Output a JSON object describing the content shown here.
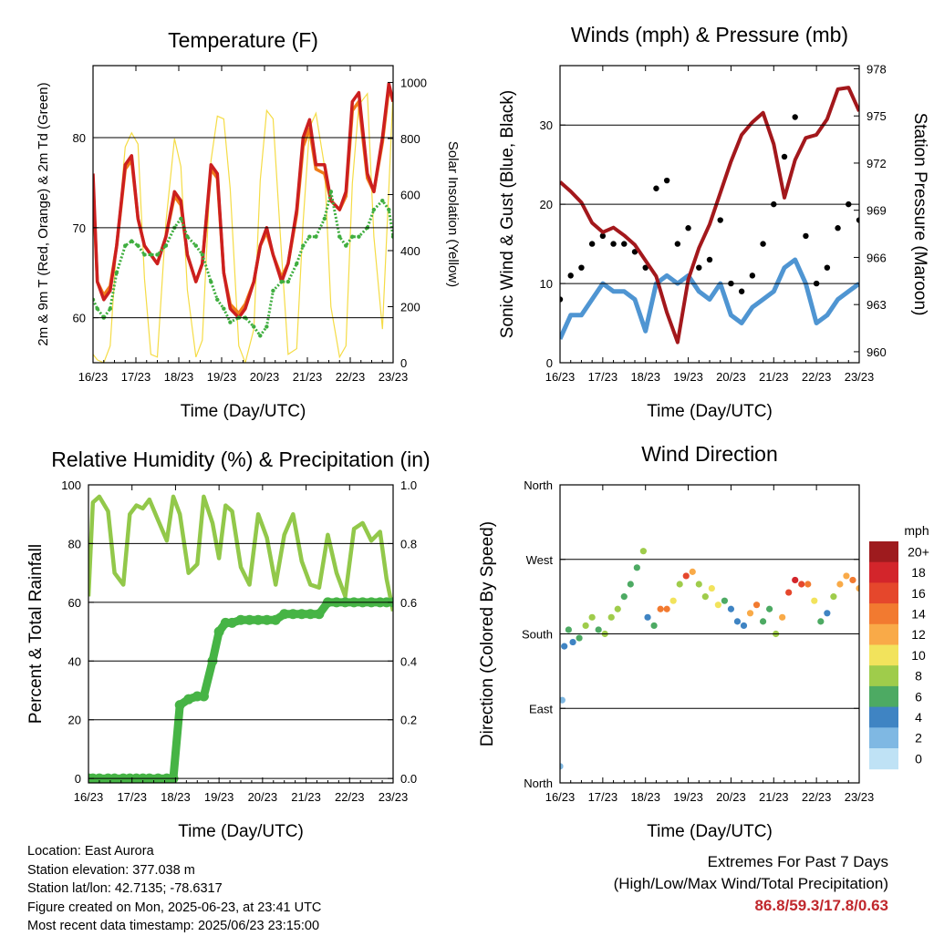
{
  "colors": {
    "temp_2m": "#cc1f1f",
    "temp_9m": "#f07d1a",
    "dewpoint": "#3fae3f",
    "solar": "#f5dc46",
    "wind": "#4f95d2",
    "gust": "#000000",
    "pressure": "#a3181c",
    "rh": "#92c84a",
    "precip": "#46b445",
    "extremes": "#c0282d"
  },
  "chart_data": [
    {
      "id": "temperature",
      "type": "line",
      "title": "Temperature (F)",
      "xlabel": "Time (Day/UTC)",
      "ylabel": "2m & 9m T (Red, Orange) & 2m Td (Green)",
      "y2label": "Solar Insolation (Yellow)",
      "x_ticks": [
        "16/23",
        "17/23",
        "18/23",
        "19/23",
        "20/23",
        "21/23",
        "22/23",
        "23/23"
      ],
      "xlim": [
        0,
        7
      ],
      "ylim": [
        55,
        88
      ],
      "y_ticks": [
        60,
        70,
        80
      ],
      "y2lim": [
        0,
        1060
      ],
      "y2_ticks": [
        0,
        200,
        400,
        600,
        800,
        1000
      ],
      "grid": true,
      "x": [
        0,
        0.1,
        0.25,
        0.4,
        0.55,
        0.75,
        0.9,
        1.05,
        1.2,
        1.35,
        1.5,
        1.7,
        1.9,
        2.05,
        2.2,
        2.4,
        2.55,
        2.75,
        2.9,
        3.05,
        3.2,
        3.4,
        3.55,
        3.75,
        3.9,
        4.05,
        4.2,
        4.4,
        4.55,
        4.75,
        4.9,
        5.05,
        5.2,
        5.4,
        5.55,
        5.75,
        5.9,
        6.05,
        6.2,
        6.4,
        6.55,
        6.75,
        6.9,
        7.0
      ],
      "series": [
        {
          "name": "2m T",
          "values": [
            76,
            64,
            62,
            63,
            68,
            77,
            78,
            71,
            68,
            67,
            66,
            69,
            74,
            73,
            67,
            64,
            66,
            77,
            76,
            65,
            61,
            60,
            61,
            64,
            68,
            70,
            67,
            64,
            66,
            72,
            80,
            82,
            77,
            77,
            73,
            72,
            74,
            84,
            85,
            76,
            74,
            80,
            86,
            84
          ]
        },
        {
          "name": "9m T",
          "values": [
            75,
            64,
            62.5,
            63.5,
            68,
            76.5,
            77.5,
            71,
            68,
            67,
            66,
            69,
            73.5,
            72.5,
            67,
            64,
            66,
            76.5,
            75.5,
            65,
            61.5,
            60.5,
            61.5,
            64,
            68,
            69.5,
            67,
            64.5,
            66,
            71.5,
            79,
            81,
            76.5,
            76,
            73,
            72,
            73.5,
            83,
            84,
            75.5,
            74,
            79.5,
            85.5,
            84
          ]
        },
        {
          "name": "2m Td",
          "values": [
            62,
            61,
            60,
            61,
            65,
            68,
            68.5,
            68,
            67,
            67,
            67,
            68,
            70,
            71,
            69,
            68,
            67,
            64,
            62,
            61,
            59.5,
            60,
            60,
            59,
            58,
            59,
            63,
            64,
            64,
            66,
            68,
            69,
            69,
            71,
            74,
            69,
            68,
            69,
            69,
            70,
            72,
            73,
            72,
            69
          ]
        },
        {
          "name": "Solar",
          "axis": "y2",
          "values": [
            30,
            10,
            0,
            60,
            420,
            770,
            820,
            780,
            300,
            30,
            20,
            500,
            800,
            700,
            260,
            20,
            80,
            720,
            880,
            870,
            620,
            60,
            0,
            120,
            650,
            900,
            870,
            380,
            30,
            50,
            500,
            840,
            890,
            700,
            200,
            20,
            60,
            640,
            920,
            960,
            450,
            120,
            620,
            970
          ]
        }
      ]
    },
    {
      "id": "winds-pressure",
      "type": "scatter",
      "title": "Winds (mph) & Pressure (mb)",
      "xlabel": "Time (Day/UTC)",
      "ylabel": "Sonic Wind & Gust (Blue, Black)",
      "y2label": "Station Pressure (Maroon)",
      "x_ticks": [
        "16/23",
        "17/23",
        "18/23",
        "19/23",
        "20/23",
        "21/23",
        "22/23",
        "23/23"
      ],
      "xlim": [
        0,
        7
      ],
      "ylim": [
        0,
        37.5
      ],
      "y_ticks": [
        0,
        10,
        20,
        30
      ],
      "y2lim": [
        959.3,
        978.2
      ],
      "y2_ticks": [
        960,
        963,
        966,
        969,
        972,
        975,
        978
      ],
      "grid": true,
      "x": [
        0,
        0.25,
        0.5,
        0.75,
        1.0,
        1.25,
        1.5,
        1.75,
        2.0,
        2.25,
        2.5,
        2.75,
        3.0,
        3.25,
        3.5,
        3.75,
        4.0,
        4.25,
        4.5,
        4.75,
        5.0,
        5.25,
        5.5,
        5.75,
        6.0,
        6.25,
        6.5,
        6.75,
        7.0
      ],
      "series": [
        {
          "name": "Sonic Wind",
          "values": [
            3,
            6,
            6,
            8,
            10,
            9,
            9,
            8,
            4,
            10,
            11,
            10,
            11,
            9,
            8,
            10,
            6,
            5,
            7,
            8,
            9,
            12,
            13,
            10,
            5,
            6,
            8,
            9,
            10
          ]
        },
        {
          "name": "Gust",
          "values": [
            8,
            11,
            12,
            15,
            16,
            15,
            15,
            14,
            12,
            22,
            23,
            15,
            17,
            12,
            13,
            18,
            10,
            9,
            11,
            15,
            20,
            26,
            31,
            16,
            10,
            12,
            17,
            20,
            18
          ]
        },
        {
          "name": "Station Pressure",
          "axis": "y2",
          "values": [
            970.8,
            970.2,
            969.5,
            968.2,
            967.6,
            967.9,
            967.4,
            966.8,
            965.8,
            964.8,
            962.5,
            960.6,
            964.6,
            966.6,
            968.1,
            970.1,
            972.1,
            973.8,
            974.6,
            975.2,
            973.2,
            969.8,
            972.2,
            973.6,
            973.8,
            974.8,
            976.7,
            976.8,
            975.3
          ]
        }
      ]
    },
    {
      "id": "rh-precip",
      "type": "line",
      "title": "Relative Humidity (%) & Precipitation (in)",
      "xlabel": "Time (Day/UTC)",
      "ylabel": "Percent & Total Rainfall",
      "x_ticks": [
        "16/23",
        "17/23",
        "18/23",
        "19/23",
        "20/23",
        "21/23",
        "22/23",
        "23/23"
      ],
      "xlim": [
        0,
        7
      ],
      "ylim": [
        -1.5,
        100
      ],
      "y_ticks": [
        0,
        20,
        40,
        60,
        80,
        100
      ],
      "y2lim": [
        -0.015,
        1.0
      ],
      "y2_ticks": [
        0.0,
        0.2,
        0.4,
        0.6,
        0.8,
        1.0
      ],
      "grid": true,
      "x": [
        0,
        0.1,
        0.25,
        0.45,
        0.6,
        0.8,
        0.95,
        1.1,
        1.25,
        1.4,
        1.6,
        1.8,
        1.95,
        2.1,
        2.3,
        2.5,
        2.65,
        2.85,
        3.0,
        3.15,
        3.3,
        3.5,
        3.7,
        3.9,
        4.1,
        4.3,
        4.5,
        4.7,
        4.9,
        5.1,
        5.3,
        5.5,
        5.7,
        5.9,
        6.1,
        6.3,
        6.5,
        6.7,
        6.85,
        7.0
      ],
      "series": [
        {
          "name": "RH",
          "values": [
            62,
            94,
            96,
            91,
            70,
            66,
            90,
            93,
            92,
            95,
            88,
            81,
            96,
            90,
            70,
            73,
            96,
            87,
            75,
            93,
            91,
            72,
            66,
            90,
            82,
            66,
            83,
            90,
            74,
            66,
            65,
            83,
            70,
            62,
            85,
            87,
            81,
            84,
            68,
            57
          ]
        },
        {
          "name": "Total Rainfall",
          "axis": "y2",
          "values": [
            0.0,
            0.0,
            0.0,
            0.0,
            0.0,
            0.0,
            0.0,
            0.0,
            0.0,
            0.0,
            0.0,
            0.0,
            0.0,
            0.25,
            0.27,
            0.28,
            0.28,
            0.4,
            0.5,
            0.53,
            0.53,
            0.54,
            0.54,
            0.54,
            0.54,
            0.54,
            0.56,
            0.56,
            0.56,
            0.56,
            0.56,
            0.6,
            0.6,
            0.6,
            0.6,
            0.6,
            0.6,
            0.6,
            0.6,
            0.6
          ]
        }
      ]
    },
    {
      "id": "wind-direction",
      "type": "scatter",
      "title": "Wind Direction",
      "xlabel": "Time (Day/UTC)",
      "ylabel": "Direction (Colored By Speed)",
      "x_ticks": [
        "16/23",
        "17/23",
        "18/23",
        "19/23",
        "20/23",
        "21/23",
        "22/23",
        "23/23"
      ],
      "xlim": [
        0,
        7
      ],
      "ylim": [
        0,
        360
      ],
      "y_tick_values": [
        0,
        90,
        180,
        270,
        360
      ],
      "y_tick_labels": [
        "North",
        "East",
        "South",
        "West",
        "North"
      ],
      "grid": true,
      "x": [
        0,
        0.05,
        0.1,
        0.2,
        0.3,
        0.45,
        0.6,
        0.75,
        0.9,
        1.05,
        1.2,
        1.35,
        1.5,
        1.65,
        1.8,
        1.95,
        2.05,
        2.2,
        2.35,
        2.5,
        2.65,
        2.8,
        2.95,
        3.1,
        3.25,
        3.4,
        3.55,
        3.7,
        3.85,
        4.0,
        4.15,
        4.3,
        4.45,
        4.6,
        4.75,
        4.9,
        5.05,
        5.2,
        5.35,
        5.5,
        5.65,
        5.8,
        5.95,
        6.1,
        6.25,
        6.4,
        6.55,
        6.7,
        6.85,
        7.0
      ],
      "series": [
        {
          "name": "Direction",
          "values": [
            20,
            100,
            165,
            185,
            170,
            175,
            190,
            200,
            185,
            180,
            200,
            210,
            225,
            240,
            260,
            280,
            200,
            190,
            210,
            210,
            220,
            240,
            250,
            255,
            240,
            225,
            235,
            215,
            220,
            210,
            195,
            190,
            205,
            215,
            195,
            210,
            180,
            200,
            230,
            245,
            240,
            240,
            220,
            195,
            205,
            225,
            240,
            250,
            245,
            235
          ]
        },
        {
          "name": "Speed",
          "values": [
            2,
            3,
            5,
            6,
            5,
            7,
            8,
            9,
            7,
            8,
            9,
            9,
            7,
            6,
            7,
            8,
            5,
            6,
            14,
            15,
            10,
            9,
            16,
            12,
            9,
            8,
            10,
            11,
            6,
            5,
            5,
            4,
            12,
            14,
            6,
            7,
            9,
            12,
            16,
            18,
            16,
            14,
            10,
            6,
            5,
            8,
            12,
            13,
            14,
            12
          ]
        }
      ]
    }
  ],
  "colorbar": {
    "title": "mph",
    "labels": [
      "20+",
      "18",
      "16",
      "14",
      "12",
      "10",
      "8",
      "6",
      "4",
      "2",
      "0"
    ],
    "colors": [
      "#9e1b1e",
      "#d3252b",
      "#e5472c",
      "#f27a30",
      "#f9aa48",
      "#f2e35c",
      "#9fcc4b",
      "#4daa63",
      "#3f84c3",
      "#7fb8e3",
      "#bfe2f5"
    ]
  },
  "footer": {
    "location": "Location: East Aurora",
    "elevation": "Station elevation: 377.038 m",
    "latlon": "Station lat/lon: 42.7135; -78.6317",
    "created": "Figure created on Mon, 2025-06-23, at 23:41 UTC",
    "recent": "Most recent data timestamp: 2025/06/23 23:15:00"
  },
  "extremes": {
    "heading": "Extremes For Past 7 Days",
    "subheading": "(High/Low/Max Wind/Total Precipitation)",
    "values": "86.8/59.3/17.8/0.63"
  }
}
